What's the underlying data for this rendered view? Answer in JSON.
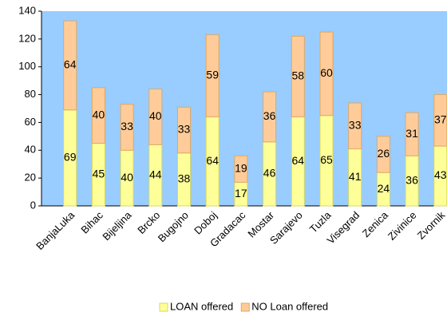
{
  "chart_data": {
    "type": "stacked_bar",
    "categories": [
      "BanjaLuka",
      "Bihac",
      "Bijeljina",
      "Brcko",
      "Bugojno",
      "Doboj",
      "Gradacac",
      "Mostar",
      "Sarajevo",
      "Tuzla",
      "Visegrad",
      "Zenica",
      "Zivinice",
      "Zvornik"
    ],
    "series": [
      {
        "name": "LOAN offered",
        "color": "#ffff99",
        "values": [
          69,
          45,
          40,
          44,
          38,
          64,
          17,
          46,
          64,
          65,
          41,
          24,
          36,
          43
        ]
      },
      {
        "name": "NO Loan offered",
        "color": "#ffcc99",
        "values": [
          64,
          40,
          33,
          40,
          33,
          59,
          19,
          36,
          58,
          60,
          33,
          26,
          31,
          37
        ]
      }
    ],
    "ylim": [
      0,
      140
    ],
    "yticks": [
      0,
      20,
      40,
      60,
      80,
      100,
      120,
      140
    ],
    "legend": "bottom"
  }
}
